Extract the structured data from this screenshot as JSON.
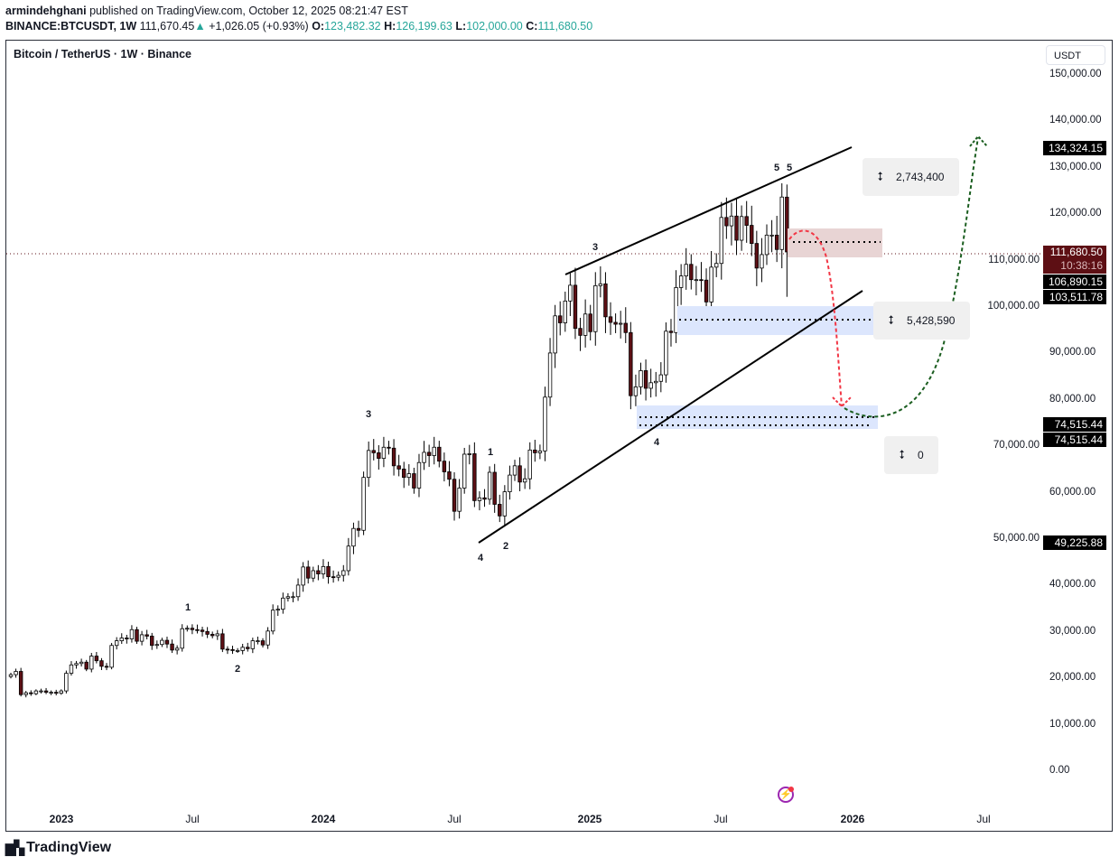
{
  "header": {
    "author": "armindehghani",
    "published": "published on TradingView.com, October 12, 2025 08:21:47 EST",
    "symbol": "BINANCE:BTCUSDT, 1W",
    "last": "111,670.45",
    "change": "+1,026.05 (+0.93%)",
    "o_label": "O:",
    "o": "123,482.32",
    "h_label": "H:",
    "h": "126,199.63",
    "l_label": "L:",
    "l": "102,000.00",
    "c_label": "C:",
    "c": "111,680.50"
  },
  "chart_title": "Bitcoin / TetherUS · 1W · Binance",
  "currency": "USDT",
  "price_labels": {
    "target": "134,324.15",
    "current": "111,680.50",
    "countdown": "10:38:16",
    "level1": "106,890.15",
    "level2": "103,511.78",
    "support_a": "74,515.44",
    "support_b": "74,515.44",
    "low": "49,225.88"
  },
  "measurements": [
    "2,743,400",
    "5,428,590",
    "0"
  ],
  "wave_labels": [
    "3",
    "5",
    "5",
    "3",
    "1",
    "2",
    "4",
    "4",
    "1",
    "2"
  ],
  "brand": "TradingView",
  "colors": {
    "up_body": "#ffffff",
    "down_body": "#5d0f14",
    "wick": "#000000",
    "red_zone": "#e8d4d4",
    "blue_zone": "#dce6fd",
    "bear_arrow": "#f23645",
    "bull_arrow": "#1b5e20"
  },
  "chart_data": {
    "type": "candlestick",
    "interval": "1W",
    "y_ticks": [
      "150,000.00",
      "140,000.00",
      "130,000.00",
      "120,000.00",
      "110,000.00",
      "100,000.00",
      "90,000.00",
      "80,000.00",
      "70,000.00",
      "60,000.00",
      "50,000.00",
      "40,000.00",
      "30,000.00",
      "20,000.00",
      "10,000.00",
      "0.00"
    ],
    "x_ticks": [
      "2023",
      "Jul",
      "2024",
      "Jul",
      "2025",
      "Jul",
      "2026",
      "Jul"
    ],
    "ylim": [
      0,
      150000
    ],
    "closes_k": [
      20.6,
      21.3,
      16.3,
      16.7,
      16.5,
      17.1,
      17.1,
      16.8,
      16.8,
      16.6,
      17.1,
      20.9,
      22.7,
      23.0,
      23.3,
      21.8,
      24.6,
      23.6,
      22.4,
      22.2,
      26.9,
      27.9,
      28.5,
      28.3,
      30.3,
      27.8,
      29.2,
      28.9,
      26.9,
      27.1,
      28.0,
      27.2,
      25.9,
      26.3,
      30.5,
      30.6,
      30.3,
      30.2,
      29.9,
      29.3,
      29.0,
      29.4,
      26.1,
      26.0,
      25.8,
      25.8,
      26.5,
      26.2,
      27.9,
      27.9,
      27.0,
      30.0,
      34.5,
      34.7,
      37.1,
      37.4,
      37.4,
      39.9,
      43.8,
      41.4,
      43.0,
      42.3,
      43.9,
      41.7,
      41.6,
      42.0,
      43.0,
      48.3,
      52.1,
      51.7,
      63.1,
      68.9,
      68.4,
      67.2,
      69.6,
      69.4,
      65.6,
      64.9,
      63.1,
      63.9,
      60.8,
      66.3,
      68.5,
      67.8,
      69.6,
      66.6,
      64.3,
      62.7,
      55.8,
      60.8,
      68.1,
      68.2,
      58.1,
      58.7,
      58.4,
      64.2,
      57.3,
      54.8,
      60.0,
      63.6,
      65.6,
      62.1,
      62.8,
      69.0,
      68.4,
      68.8,
      80.4,
      89.9,
      97.9,
      96.4,
      101.1,
      104.5,
      95.2,
      93.7,
      98.3,
      94.5,
      104.4,
      104.8,
      97.7,
      96.5,
      96.1,
      96.3,
      94.3,
      80.7,
      82.6,
      86.1,
      82.3,
      83.5,
      83.8,
      85.2,
      94.6,
      94.3,
      104.0,
      106.5,
      109.0,
      105.7,
      105.7,
      105.6,
      100.9,
      108.4,
      109.2,
      119.1,
      117.3,
      119.4,
      114.2,
      119.3,
      117.4,
      113.5,
      108.2,
      111.1,
      115.3,
      115.3,
      112.2,
      123.5,
      111.68
    ],
    "last_candle": {
      "open": 123482.32,
      "high": 126199.63,
      "low": 102000.0,
      "close": 111680.5
    }
  }
}
